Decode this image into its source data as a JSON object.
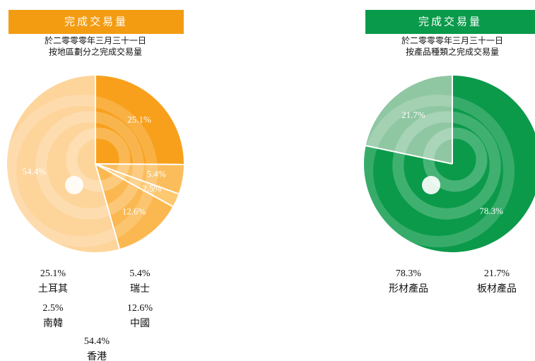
{
  "chart_data": [
    {
      "type": "pie",
      "title": "完成交易量",
      "header_color": "#f39c12",
      "subtitle": [
        "於二零零零年三月三十一日",
        "按地區劃分之完成交易量"
      ],
      "categories": [
        "土耳其",
        "瑞士",
        "南韓",
        "中國",
        "香港"
      ],
      "values": [
        25.1,
        5.4,
        2.5,
        12.6,
        54.4
      ],
      "value_labels": [
        "25.1%",
        "5.4%",
        "2.5%",
        "12.6%",
        "54.4%"
      ],
      "colors": [
        "#f8a01c",
        "#fbbd5c",
        "#fcc870",
        "#fbb850",
        "#fdd49a"
      ]
    },
    {
      "type": "pie",
      "title": "完成交易量",
      "header_color": "#0a9a4b",
      "subtitle": [
        "於二零零零年三月三十一日",
        "按產品種類之完成交易量"
      ],
      "categories": [
        "形材產品",
        "板材產品"
      ],
      "values": [
        78.3,
        21.7
      ],
      "value_labels": [
        "78.3%",
        "21.7%"
      ],
      "colors": [
        "#0b9a4a",
        "#8fc7a2"
      ]
    }
  ]
}
